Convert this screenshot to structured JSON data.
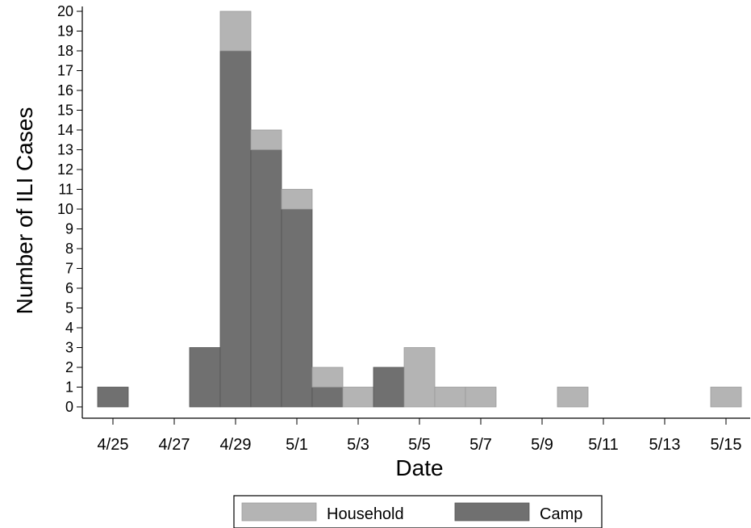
{
  "chart_data": {
    "type": "bar",
    "stacked": true,
    "title": "",
    "xlabel": "Date",
    "ylabel": "Number of ILI Cases",
    "ylim": [
      0,
      20
    ],
    "yticks": [
      0,
      1,
      2,
      3,
      4,
      5,
      6,
      7,
      8,
      9,
      10,
      11,
      12,
      13,
      14,
      15,
      16,
      17,
      18,
      19,
      20
    ],
    "xtick_labels": [
      "4/25",
      "4/27",
      "4/29",
      "5/1",
      "5/3",
      "5/5",
      "5/7",
      "5/9",
      "5/11",
      "5/13",
      "5/15"
    ],
    "categories": [
      "4/25",
      "4/26",
      "4/27",
      "4/28",
      "4/29",
      "4/30",
      "5/1",
      "5/2",
      "5/3",
      "5/4",
      "5/5",
      "5/6",
      "5/7",
      "5/8",
      "5/9",
      "5/10",
      "5/11",
      "5/12",
      "5/13",
      "5/14",
      "5/15"
    ],
    "series": [
      {
        "name": "Camp",
        "color": "#707070",
        "values": [
          1,
          0,
          0,
          3,
          18,
          13,
          10,
          1,
          0,
          2,
          0,
          0,
          0,
          0,
          0,
          0,
          0,
          0,
          0,
          0,
          0
        ]
      },
      {
        "name": "Household",
        "color": "#b4b4b4",
        "values": [
          0,
          0,
          0,
          0,
          2,
          1,
          1,
          1,
          1,
          0,
          3,
          1,
          1,
          0,
          0,
          1,
          0,
          0,
          0,
          0,
          1
        ]
      }
    ],
    "legend": {
      "position": "bottom",
      "order": [
        "Household",
        "Camp"
      ]
    },
    "grid": false
  }
}
